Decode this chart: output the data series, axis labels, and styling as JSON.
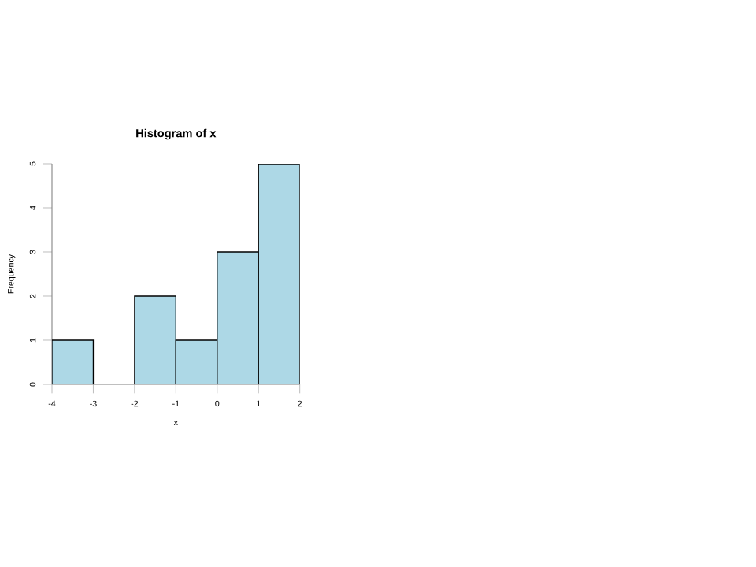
{
  "chart_data": {
    "type": "histogram",
    "title": "Histogram of x",
    "xlabel": "x",
    "ylabel": "Frequency",
    "bins": [
      -4,
      -3,
      -2,
      -1,
      0,
      1,
      2
    ],
    "values": [
      1,
      0,
      2,
      1,
      3,
      5
    ],
    "color": "#add8e6",
    "xlim": [
      -4,
      2
    ],
    "ylim": [
      0,
      5
    ],
    "xticks": [
      -4,
      -3,
      -2,
      -1,
      0,
      1,
      2
    ],
    "yticks": [
      0,
      1,
      2,
      3,
      4,
      5
    ],
    "grid": false
  }
}
